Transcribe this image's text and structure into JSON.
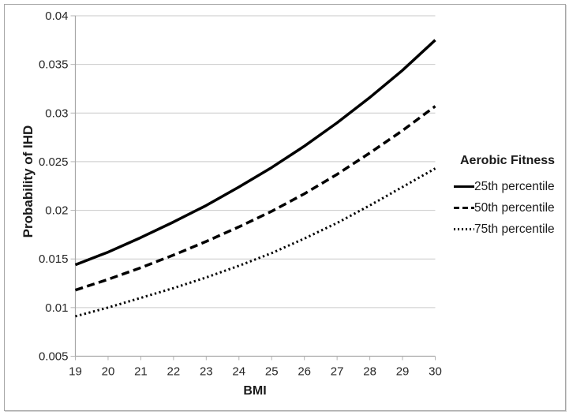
{
  "colors": {
    "line": "#000000",
    "gridline": "#c9c9c9",
    "axis": "#a6a6a6",
    "tick": "#b3b3b3",
    "text": "#262626",
    "frame_border": "#a6a6a6",
    "background": "#ffffff"
  },
  "chart_data": {
    "type": "line",
    "title": "",
    "xlabel": "BMI",
    "ylabel": "Probability of IHD",
    "x": [
      19,
      20,
      21,
      22,
      23,
      24,
      25,
      26,
      27,
      28,
      29,
      30
    ],
    "x_tick_labels": [
      "19",
      "20",
      "21",
      "22",
      "23",
      "24",
      "25",
      "26",
      "27",
      "28",
      "29",
      "30"
    ],
    "y_tick_labels": [
      "0.005",
      "0.01",
      "0.015",
      "0.02",
      "0.025",
      "0.03",
      "0.035",
      "0.04"
    ],
    "ylim": [
      0.005,
      0.04
    ],
    "xlim": [
      19,
      30
    ],
    "grid": "horizontal",
    "legend_position": "right",
    "legend_title": "Aerobic Fitness",
    "series": [
      {
        "name": "25th percentile",
        "line_style": "solid",
        "color": "#000000",
        "values": [
          0.0144,
          0.0157,
          0.0172,
          0.0188,
          0.0205,
          0.0224,
          0.0244,
          0.0266,
          0.029,
          0.0316,
          0.0344,
          0.0375
        ]
      },
      {
        "name": "50th percentile",
        "line_style": "dashed",
        "color": "#000000",
        "values": [
          0.0118,
          0.0129,
          0.0141,
          0.0154,
          0.0168,
          0.0183,
          0.0199,
          0.0217,
          0.0237,
          0.0259,
          0.0282,
          0.0307
        ]
      },
      {
        "name": "75th percentile",
        "line_style": "dotted",
        "color": "#000000",
        "values": [
          0.0091,
          0.01,
          0.011,
          0.012,
          0.0131,
          0.0143,
          0.0156,
          0.0171,
          0.0187,
          0.0205,
          0.0224,
          0.0243
        ]
      }
    ]
  }
}
